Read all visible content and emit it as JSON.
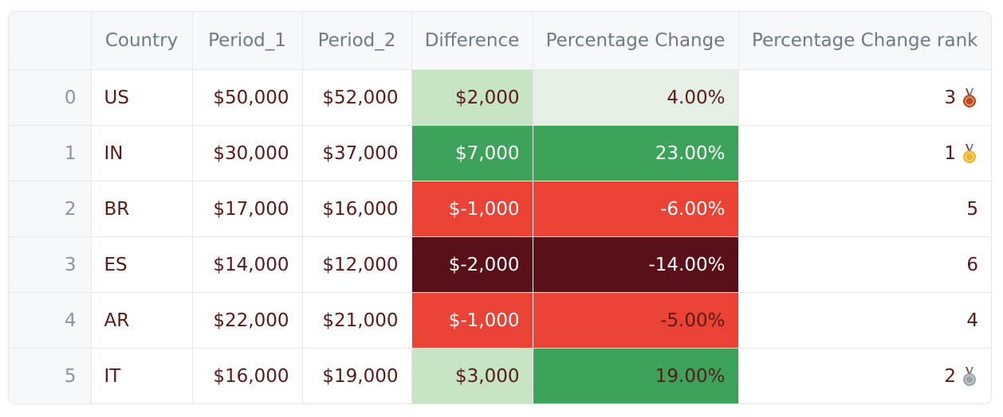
{
  "table": {
    "headers": [
      "",
      "Country",
      "Period_1",
      "Period_2",
      "Difference",
      "Percentage Change",
      "Percentage Change rank"
    ],
    "rows": [
      {
        "index": "0",
        "country": "US",
        "period_1": "$50,000",
        "period_2": "$52,000",
        "difference": "$2,000",
        "pct_change": "4.00%",
        "rank": "3",
        "medal": "bronze-medal-icon",
        "diff_bg": "#c6e3c4",
        "pct_bg": "#e5efe5"
      },
      {
        "index": "1",
        "country": "IN",
        "period_1": "$30,000",
        "period_2": "$37,000",
        "difference": "$7,000",
        "pct_change": "23.00%",
        "rank": "1",
        "medal": "gold-medal-icon",
        "diff_bg": "#3da35a",
        "pct_bg": "#3da35a"
      },
      {
        "index": "2",
        "country": "BR",
        "period_1": "$17,000",
        "period_2": "$16,000",
        "difference": "$-1,000",
        "pct_change": "-6.00%",
        "rank": "5",
        "medal": "",
        "diff_bg": "#ea4335",
        "pct_bg": "#ea4335"
      },
      {
        "index": "3",
        "country": "ES",
        "period_1": "$14,000",
        "period_2": "$12,000",
        "difference": "$-2,000",
        "pct_change": "-14.00%",
        "rank": "6",
        "medal": "",
        "diff_bg": "#5a1018",
        "pct_bg": "#5a1018"
      },
      {
        "index": "4",
        "country": "AR",
        "period_1": "$22,000",
        "period_2": "$21,000",
        "difference": "$-1,000",
        "pct_change": "-5.00%",
        "rank": "4",
        "medal": "",
        "diff_bg": "#ea4335",
        "pct_bg": "#ea4335"
      },
      {
        "index": "5",
        "country": "IT",
        "period_1": "$16,000",
        "period_2": "$19,000",
        "difference": "$3,000",
        "pct_change": "19.00%",
        "rank": "2",
        "medal": "silver-medal-icon",
        "diff_bg": "#c6e3c4",
        "pct_bg": "#3da35a"
      }
    ]
  },
  "colors": {
    "dark_text": "#5a1a1a",
    "light_text": "#ffffff",
    "header_bg": "#f7f8f9",
    "gold": "#f0b429",
    "silver": "#9aa3a8",
    "bronze": "#c0481e"
  }
}
